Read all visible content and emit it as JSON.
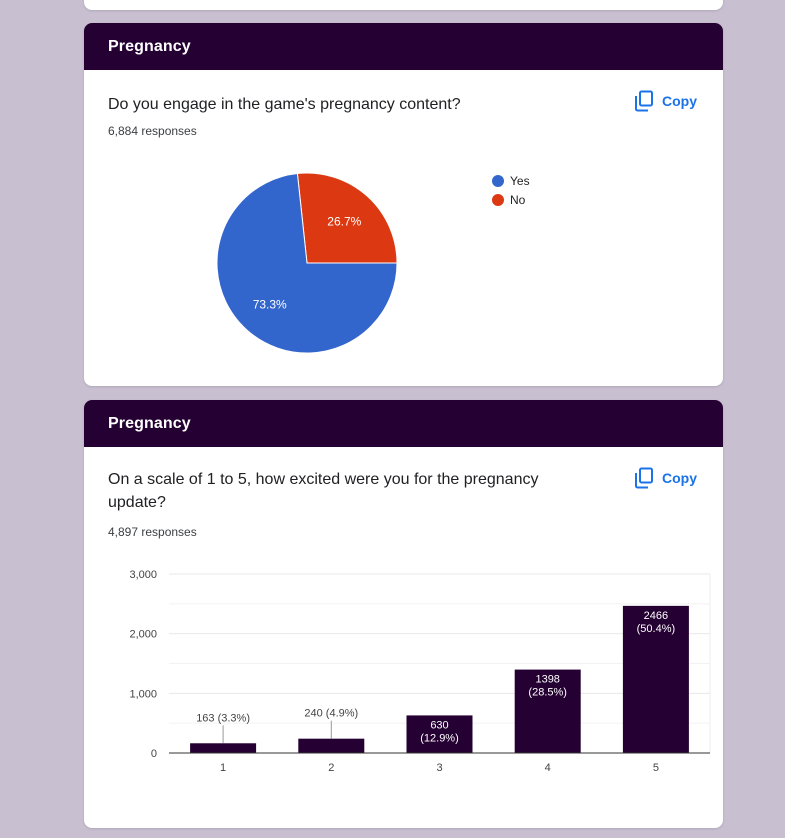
{
  "cards": [
    {
      "header": "Pregnancy",
      "question": "Do you engage in the game's pregnancy content?",
      "responses": "6,884 responses",
      "copy_label": "Copy"
    },
    {
      "header": "Pregnancy",
      "question": "On a scale of 1 to 5, how excited were you for the pregnancy update?",
      "responses": "4,897 responses",
      "copy_label": "Copy"
    }
  ],
  "chart_data": [
    {
      "type": "pie",
      "categories": [
        "Yes",
        "No"
      ],
      "values": [
        73.3,
        26.7
      ],
      "labels": [
        "73.3%",
        "26.7%"
      ],
      "colors": [
        "#3366cc",
        "#dc3912"
      ],
      "legend": "right"
    },
    {
      "type": "bar",
      "categories": [
        "1",
        "2",
        "3",
        "4",
        "5"
      ],
      "values": [
        163,
        240,
        630,
        1398,
        2466
      ],
      "percents": [
        "3.3%",
        "4.9%",
        "12.9%",
        "28.5%",
        "50.4%"
      ],
      "data_labels": [
        "163 (3.3%)",
        "240 (4.9%)",
        "630 (12.9%)",
        "1398 (28.5%)",
        "2466 (50.4%)"
      ],
      "ylim": [
        0,
        3000
      ],
      "yticks": [
        0,
        1000,
        2000,
        3000
      ],
      "ytick_labels": [
        "0",
        "1,000",
        "2,000",
        "3,000"
      ],
      "color": "#250032",
      "grid": true
    }
  ]
}
